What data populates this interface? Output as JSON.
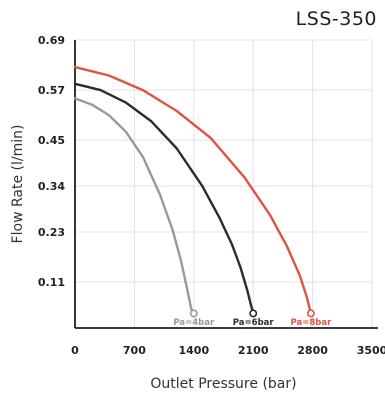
{
  "chart_data": {
    "type": "line",
    "title": "LSS-350",
    "xlabel": "Outlet Pressure (bar)",
    "ylabel": "Flow Rate (l/min)",
    "xlim": [
      0,
      3500
    ],
    "ylim": [
      0,
      0.69
    ],
    "x_ticks": [
      0,
      700,
      1400,
      2100,
      2800,
      3500
    ],
    "x_tick_labels": [
      "0",
      "700",
      "1400",
      "2100",
      "2800",
      "3500"
    ],
    "y_ticks": [
      0.11,
      0.23,
      0.34,
      0.45,
      0.57,
      0.69
    ],
    "y_tick_labels": [
      "0.11",
      "0.23",
      "0.34",
      "0.45",
      "0.57",
      "0.69"
    ],
    "grid": true,
    "series": [
      {
        "name": "Pa=4bar",
        "color": "#999999",
        "x": [
          0,
          200,
          400,
          600,
          800,
          1000,
          1150,
          1250,
          1320,
          1370,
          1400
        ],
        "y": [
          0.55,
          0.535,
          0.51,
          0.47,
          0.41,
          0.32,
          0.235,
          0.16,
          0.095,
          0.045,
          0.035
        ]
      },
      {
        "name": "Pa=6bar",
        "color": "#2a2a3a",
        "x": [
          0,
          300,
          600,
          900,
          1200,
          1500,
          1700,
          1850,
          1950,
          2030,
          2080,
          2100
        ],
        "y": [
          0.585,
          0.57,
          0.54,
          0.495,
          0.43,
          0.34,
          0.265,
          0.2,
          0.145,
          0.09,
          0.05,
          0.035
        ]
      },
      {
        "name": "Pa=8bar",
        "color": "#e05245",
        "x": [
          0,
          400,
          800,
          1200,
          1600,
          2000,
          2300,
          2500,
          2650,
          2730,
          2780
        ],
        "y": [
          0.625,
          0.605,
          0.57,
          0.52,
          0.455,
          0.36,
          0.27,
          0.195,
          0.125,
          0.075,
          0.035
        ]
      }
    ],
    "annotations": [
      "Pa=4bar",
      "Pa=6bar",
      "Pa=8bar"
    ]
  }
}
